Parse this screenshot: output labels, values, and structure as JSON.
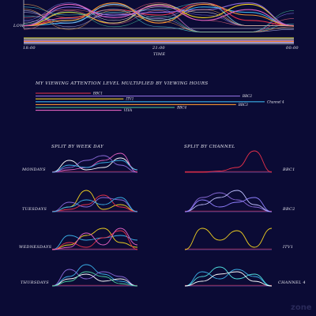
{
  "colors": {
    "background": "#0b0b35",
    "BBC1": "#e8304a",
    "BBC2": "#8a6ad8",
    "ITV1": "#f0d020",
    "Channel 4": "#3ab0e8",
    "BBC4": "#f09030",
    "VIVA": "#e060c0",
    "extra": [
      "#4ad0a0",
      "#ffffff",
      "#c0c0ff",
      "#ff7080",
      "#50e0e0",
      "#9080ff",
      "#ffb050"
    ]
  },
  "top_chart": {
    "y_label": "LOW",
    "x_label": "TIME",
    "x_ticks": [
      "18:00",
      "21:00",
      "00:00"
    ]
  },
  "bars_section": {
    "title": "MY VIEWING ATTENTION LEVEL MULTIPLIED BY VIEWING HOURS"
  },
  "weekday_section": {
    "title": "SPLIT BY WEEK DAY",
    "rows": [
      "MONDAYS",
      "TUESDAYS",
      "WEDNESDAYS",
      "THURSDAYS"
    ]
  },
  "channel_section": {
    "title": "SPLIT BY CHANNEL",
    "rows": [
      "BBC1",
      "BBC2",
      "ITV1",
      "CHANNEL 4"
    ]
  },
  "watermark": "zone",
  "chart_data": [
    {
      "type": "line",
      "description": "Viewing attention level over the evening, all viewing sessions overlaid",
      "ylabel": "LOW",
      "xlabel": "TIME",
      "x_ticks": [
        "18:00",
        "21:00",
        "00:00"
      ],
      "x": [
        "18:00",
        "19:00",
        "20:00",
        "21:00",
        "22:00",
        "23:00",
        "00:00"
      ],
      "series": [
        {
          "color": "#3ab0e8",
          "values": [
            0.1,
            0.2,
            0.9,
            0.3,
            0.8,
            0.6,
            0.1
          ]
        },
        {
          "color": "#f0d020",
          "values": [
            0.1,
            0.6,
            0.2,
            0.9,
            0.4,
            0.9,
            0.1
          ]
        },
        {
          "color": "#e8304a",
          "values": [
            0.1,
            0.4,
            0.7,
            0.5,
            0.95,
            0.3,
            0.1
          ]
        },
        {
          "color": "#8a6ad8",
          "values": [
            0.1,
            0.8,
            0.5,
            0.6,
            0.7,
            0.95,
            0.1
          ]
        },
        {
          "color": "#f09030",
          "values": [
            0.1,
            0.3,
            0.95,
            0.2,
            0.9,
            0.5,
            0.1
          ]
        },
        {
          "color": "#e060c0",
          "values": [
            0.1,
            0.9,
            0.4,
            0.85,
            0.3,
            0.7,
            0.1
          ]
        }
      ]
    },
    {
      "type": "bar",
      "title": "MY VIEWING ATTENTION LEVEL MULTIPLIED BY VIEWING HOURS",
      "orientation": "horizontal",
      "categories": [
        "BBC1",
        "BBC2",
        "ITV1",
        "Channel 4",
        "BBC3",
        "BBC4",
        "VIVA"
      ],
      "values": [
        27,
        100,
        43,
        112,
        98,
        68,
        42
      ],
      "bar_colors": [
        "#e8304a",
        "#8a6ad8",
        "#f0d020",
        "#3ab0e8",
        "#f09030",
        "#4ad0a0",
        "#e060c0"
      ]
    },
    {
      "type": "line",
      "title": "SPLIT BY WEEK DAY",
      "facets": [
        {
          "label": "MONDAYS",
          "series": [
            {
              "color": "#ffffff",
              "values": [
                0,
                0.5,
                0.1,
                0.2,
                0.6,
                0.1
              ]
            },
            {
              "color": "#8a6ad8",
              "values": [
                0,
                0.2,
                0.5,
                0.7,
                0.3,
                0
              ]
            },
            {
              "color": "#e060c0",
              "values": [
                0,
                0.1,
                0.2,
                0.5,
                0.8,
                0
              ]
            },
            {
              "color": "#3ab0e8",
              "values": [
                0,
                0.3,
                0.2,
                0.4,
                0.5,
                0.1
              ]
            }
          ]
        },
        {
          "label": "TUESDAYS",
          "series": [
            {
              "color": "#f0d020",
              "values": [
                0,
                0.2,
                0.9,
                0.1,
                0.3,
                0
              ]
            },
            {
              "color": "#e8304a",
              "values": [
                0,
                0.1,
                0.3,
                0.7,
                0.2,
                0
              ]
            },
            {
              "color": "#8a6ad8",
              "values": [
                0,
                0.4,
                0.2,
                0.6,
                0.5,
                0
              ]
            },
            {
              "color": "#3ab0e8",
              "values": [
                0,
                0.2,
                0.5,
                0.3,
                0.6,
                0
              ]
            }
          ]
        },
        {
          "label": "WEDNESDAYS",
          "series": [
            {
              "color": "#3ab0e8",
              "values": [
                0,
                0.6,
                0.4,
                0.5,
                0.6,
                0.4
              ]
            },
            {
              "color": "#f0d020",
              "values": [
                0,
                0.2,
                0.6,
                0.9,
                0.3,
                0.1
              ]
            },
            {
              "color": "#e8304a",
              "values": [
                0,
                0.3,
                0.1,
                0.5,
                0.8,
                0
              ]
            },
            {
              "color": "#e060c0",
              "values": [
                0,
                0.1,
                0.7,
                0.2,
                0.9,
                0.2
              ]
            }
          ]
        },
        {
          "label": "THURSDAYS",
          "series": [
            {
              "color": "#3ab0e8",
              "values": [
                0,
                0.4,
                0.9,
                0.5,
                0.2,
                0
              ]
            },
            {
              "color": "#8a6ad8",
              "values": [
                0,
                0.7,
                0.3,
                0.6,
                0.4,
                0
              ]
            },
            {
              "color": "#ffffff",
              "values": [
                0,
                0.3,
                0.5,
                0.2,
                0.3,
                0
              ]
            },
            {
              "color": "#4ad0a0",
              "values": [
                0,
                0.2,
                0.6,
                0.4,
                0.1,
                0
              ]
            }
          ]
        }
      ]
    },
    {
      "type": "line",
      "title": "SPLIT BY CHANNEL",
      "facets": [
        {
          "label": "BBC1",
          "series": [
            {
              "color": "#e8304a",
              "values": [
                0,
                0,
                0.05,
                0.2,
                0.9,
                0
              ]
            }
          ]
        },
        {
          "label": "BBC2",
          "series": [
            {
              "color": "#8a6ad8",
              "values": [
                0,
                0.6,
                0.8,
                0.5,
                0.2,
                0
              ]
            },
            {
              "color": "#c0c0ff",
              "values": [
                0,
                0.3,
                0.6,
                0.9,
                0.3,
                0
              ]
            },
            {
              "color": "#9080ff",
              "values": [
                0,
                0.5,
                0.2,
                0.4,
                0.6,
                0
              ]
            }
          ]
        },
        {
          "label": "ITV1",
          "series": [
            {
              "color": "#f0d020",
              "values": [
                0,
                0.9,
                0.4,
                0.8,
                0.1,
                0.9
              ]
            }
          ]
        },
        {
          "label": "CHANNEL 4",
          "series": [
            {
              "color": "#3ab0e8",
              "values": [
                0,
                0.6,
                0.3,
                0.7,
                0.4,
                0
              ]
            },
            {
              "color": "#50e0e0",
              "values": [
                0,
                0.4,
                0.8,
                0.3,
                0.5,
                0
              ]
            },
            {
              "color": "#ffffff",
              "values": [
                0,
                0.2,
                0.5,
                0.6,
                0.2,
                0
              ]
            }
          ]
        }
      ]
    }
  ]
}
